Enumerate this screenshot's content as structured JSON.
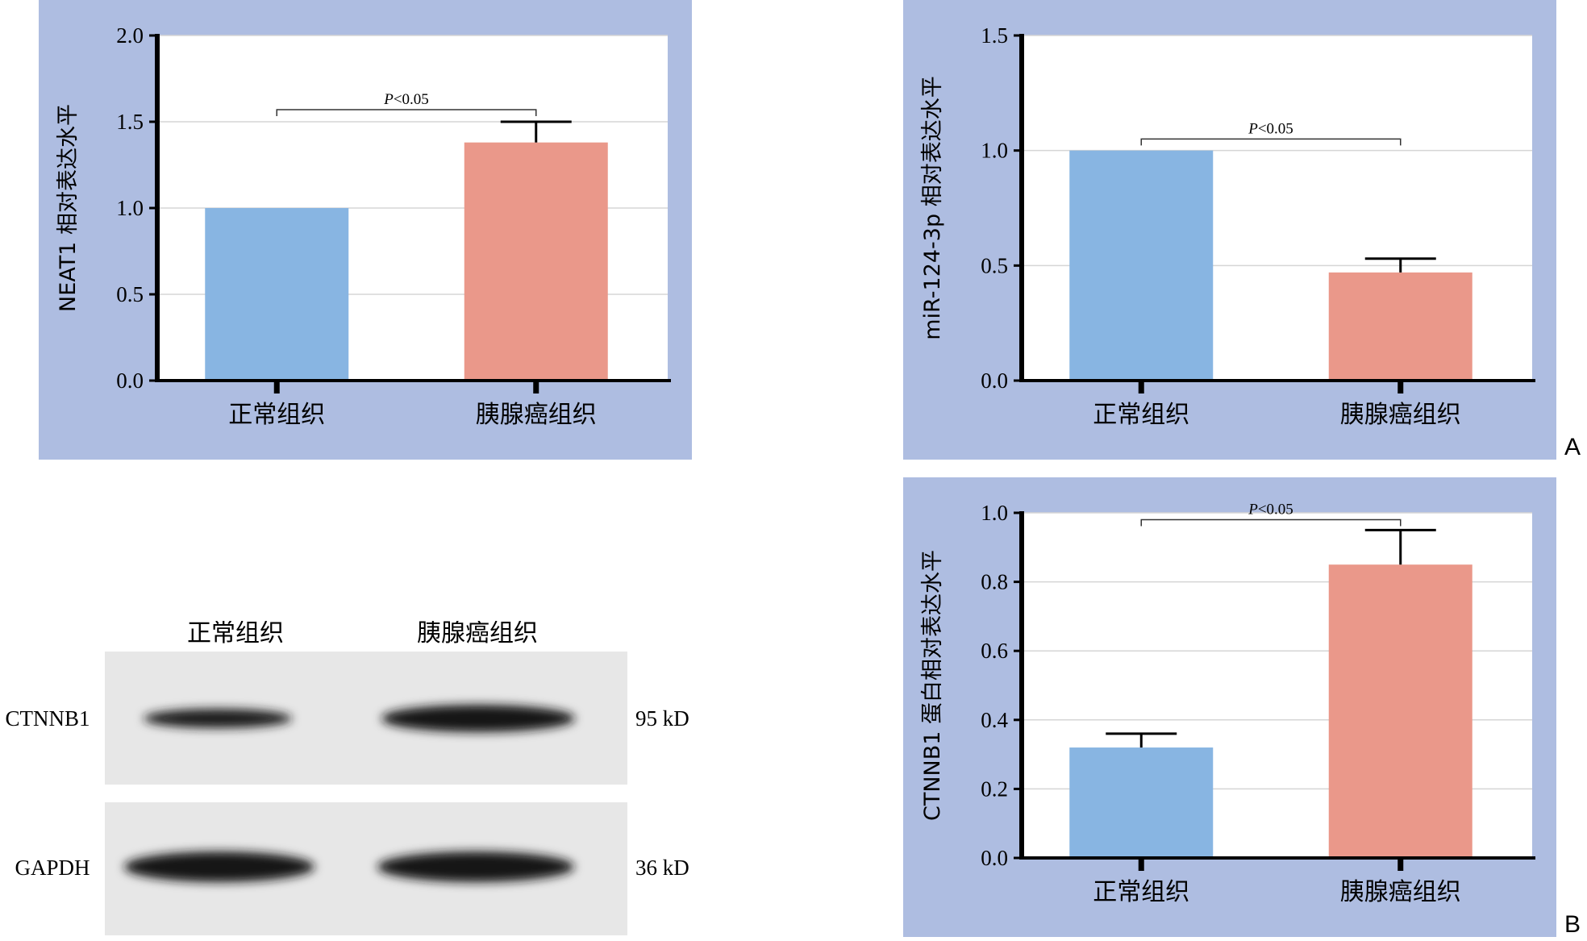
{
  "panel_letters": [
    "A",
    "B"
  ],
  "chart_data": [
    {
      "type": "bar",
      "ylabel": "NEAT1 相对表达水平",
      "xlabel": "",
      "categories": [
        "正常组织",
        "胰腺癌组织"
      ],
      "values": [
        1.0,
        1.38
      ],
      "errors": [
        0,
        0.12
      ],
      "ylim": [
        0,
        2.0
      ],
      "yticks": [
        "0.0",
        "0.5",
        "1.0",
        "1.5",
        "2.0"
      ],
      "significance": {
        "label": "P<0.05",
        "pair": [
          0,
          1
        ],
        "level": 1.57
      },
      "grid": true
    },
    {
      "type": "bar",
      "ylabel": "miR-124-3p 相对表达水平",
      "xlabel": "",
      "categories": [
        "正常组织",
        "胰腺癌组织"
      ],
      "values": [
        1.0,
        0.47
      ],
      "errors": [
        0,
        0.06
      ],
      "ylim": [
        0,
        1.5
      ],
      "yticks": [
        "0.0",
        "0.5",
        "1.0",
        "1.5"
      ],
      "significance": {
        "label": "P<0.05",
        "pair": [
          0,
          1
        ],
        "level": 1.05
      },
      "grid": true
    },
    {
      "type": "bar",
      "ylabel": "CTNNB1 蛋白相对表达水平",
      "xlabel": "",
      "categories": [
        "正常组织",
        "胰腺癌组织"
      ],
      "values": [
        0.32,
        0.85
      ],
      "errors": [
        0.04,
        0.1
      ],
      "ylim": [
        0,
        1.0
      ],
      "yticks": [
        "0.0",
        "0.2",
        "0.4",
        "0.6",
        "0.8",
        "1.0"
      ],
      "significance": {
        "label": "P<0.05",
        "pair": [
          0,
          1
        ],
        "level": 0.98
      },
      "grid": true
    }
  ],
  "colors": {
    "panel_bg": "#aebde1",
    "bar_normal": "#88b5e2",
    "bar_cancer": "#ea988a"
  },
  "western_blot": {
    "lanes": [
      "正常组织",
      "胰腺癌组织"
    ],
    "rows": [
      {
        "protein": "CTNNB1",
        "size": "95 kD"
      },
      {
        "protein": "GAPDH",
        "size": "36 kD"
      }
    ]
  }
}
